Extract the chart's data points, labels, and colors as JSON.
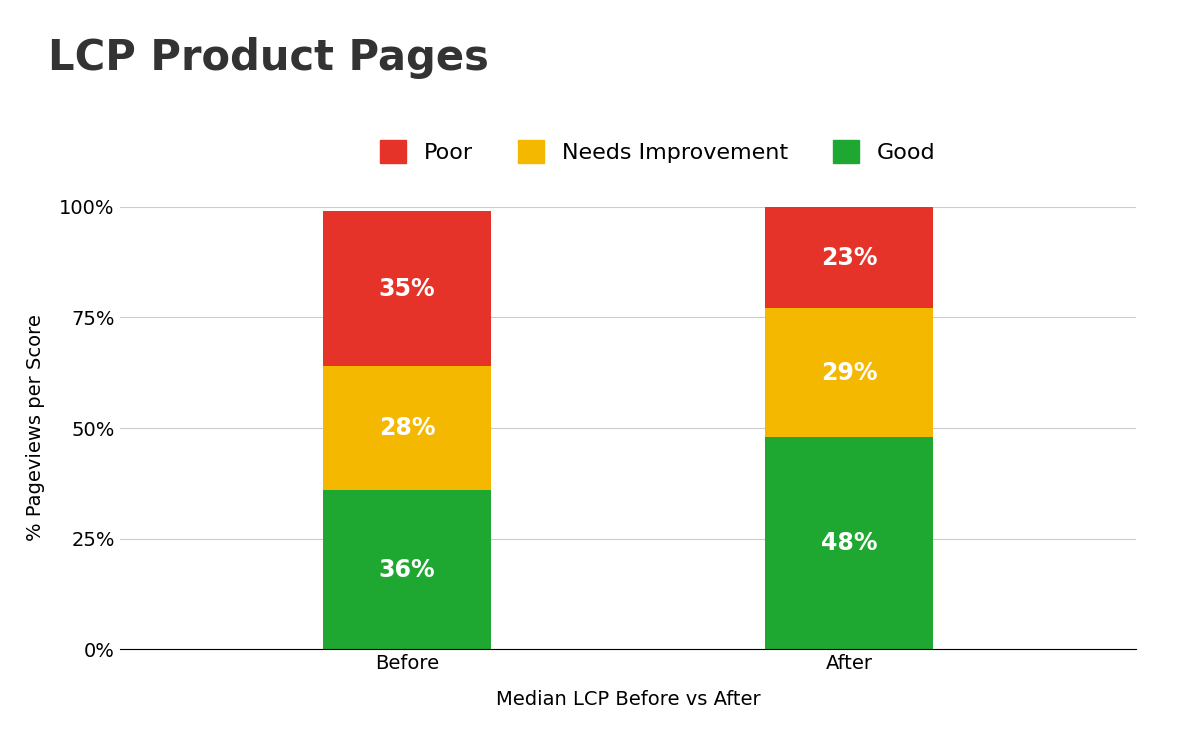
{
  "title": "LCP Product Pages",
  "xlabel": "Median LCP Before vs After",
  "ylabel": "% Pageviews per Score",
  "categories": [
    "Before",
    "After"
  ],
  "good": [
    36,
    48
  ],
  "needs_improvement": [
    28,
    29
  ],
  "poor": [
    35,
    23
  ],
  "color_good": "#1fa831",
  "color_needs_improvement": "#f5b800",
  "color_poor": "#e63329",
  "label_good": "Good",
  "label_needs_improvement": "Needs Improvement",
  "label_poor": "Poor",
  "yticks": [
    0,
    25,
    50,
    75,
    100
  ],
  "ytick_labels": [
    "0%",
    "25%",
    "50%",
    "75%",
    "100%"
  ],
  "bar_width": 0.38,
  "label_color": "#ffffff",
  "label_fontsize": 17,
  "title_fontsize": 30,
  "axis_label_fontsize": 14,
  "tick_fontsize": 14,
  "legend_fontsize": 16,
  "background_color": "#ffffff",
  "title_color": "#333333"
}
